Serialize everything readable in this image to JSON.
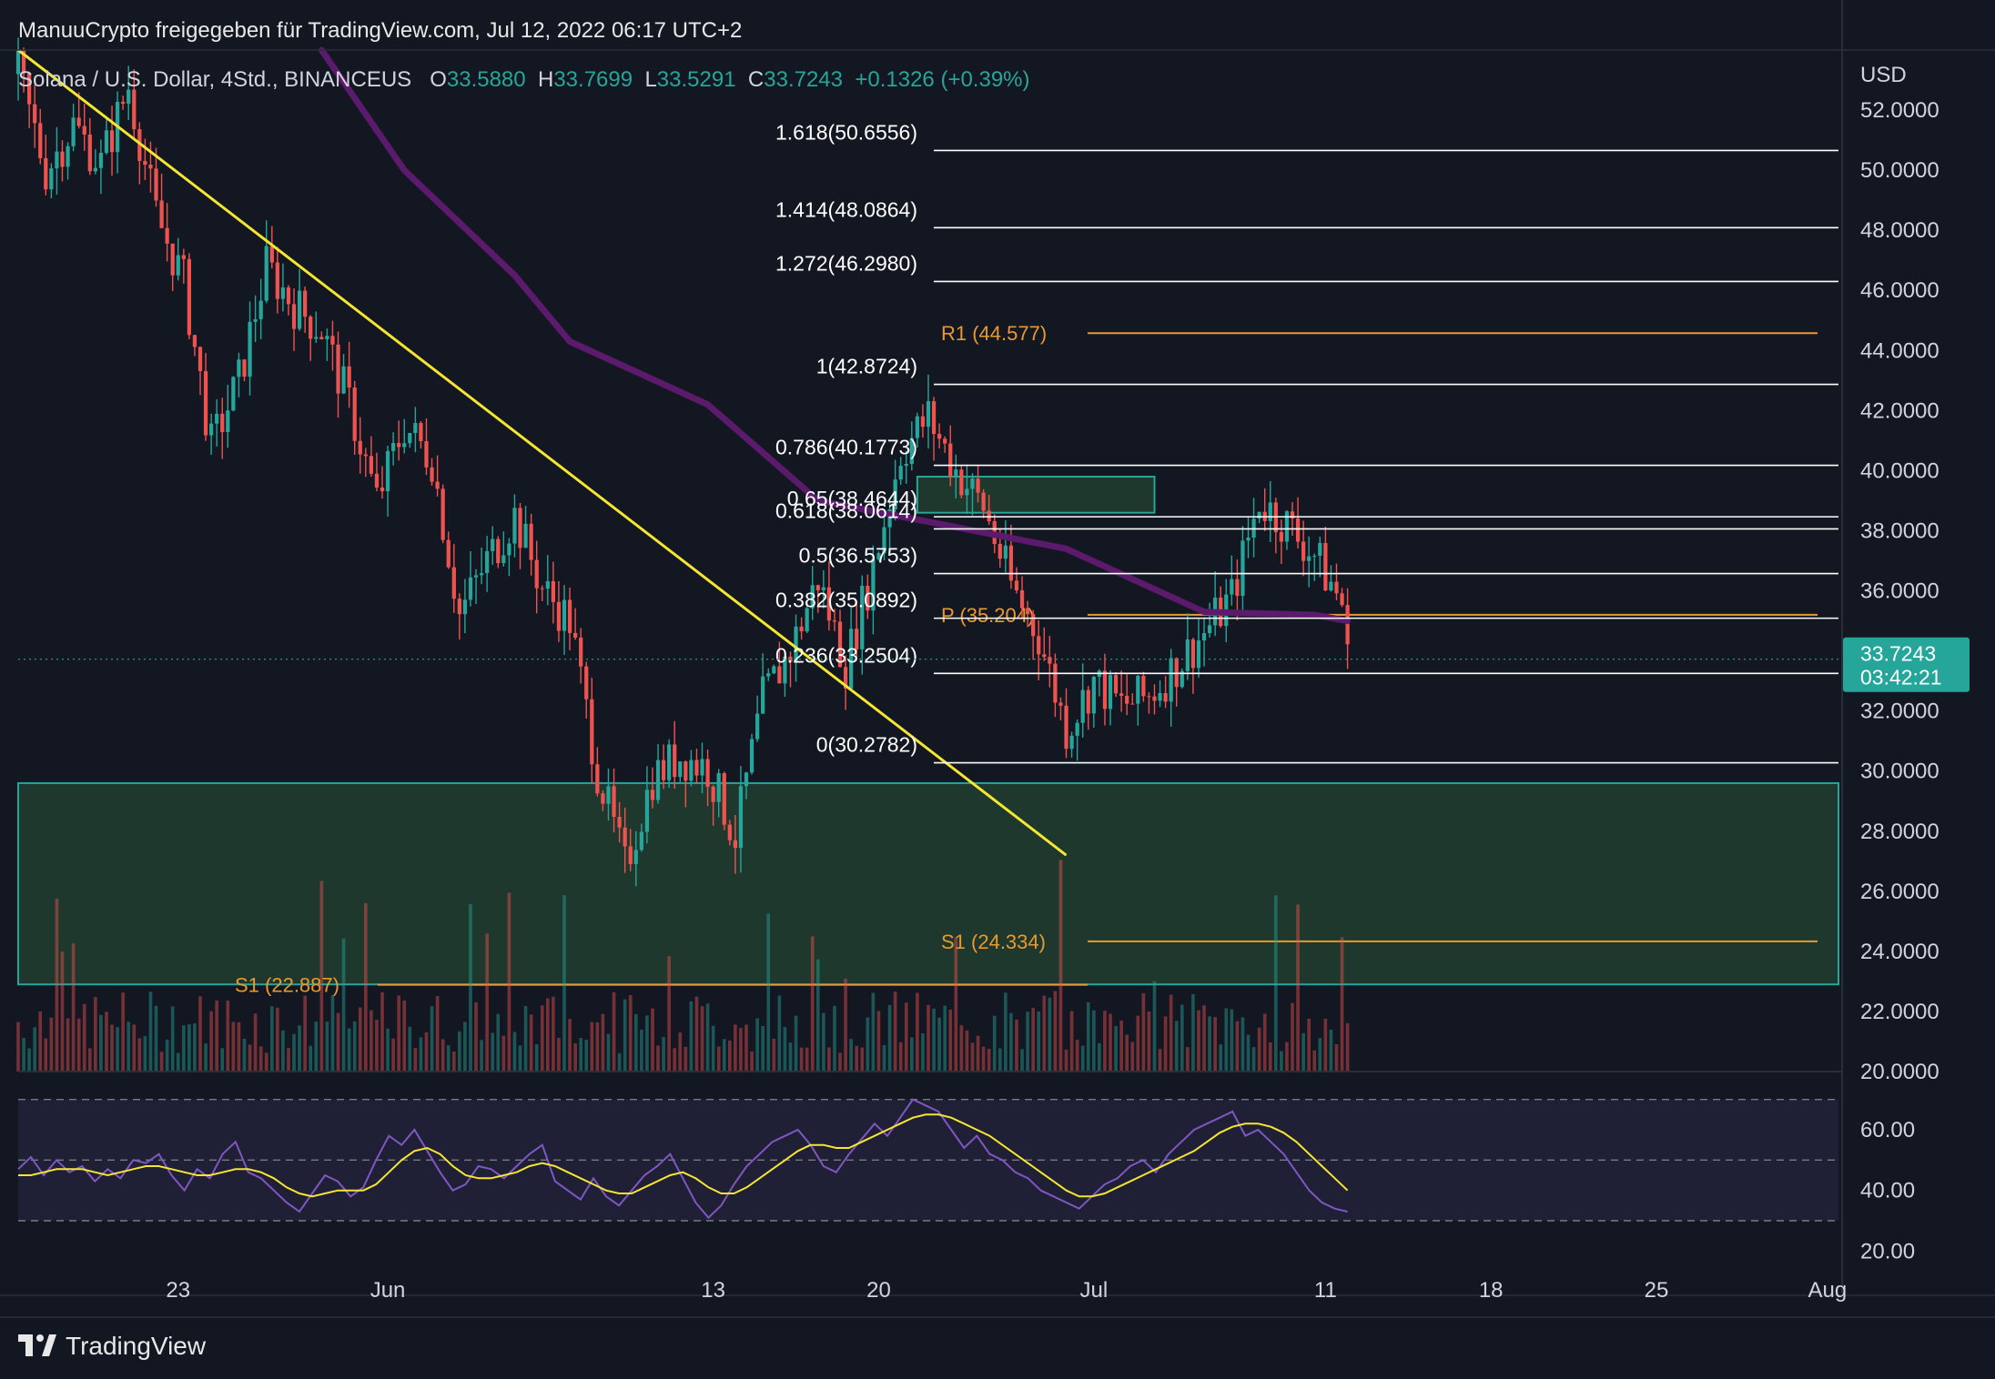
{
  "header": {
    "title": "ManuuCrypto freigegeben für TradingView.com, Jul 12, 2022 06:17 UTC+2"
  },
  "legend": {
    "symbol": "Solana / U.S. Dollar, 4Std., BINANCEUS",
    "open_label": "O",
    "open": "33.5880",
    "high_label": "H",
    "high": "33.7699",
    "low_label": "L",
    "low": "33.5291",
    "close_label": "C",
    "close": "33.7243",
    "change": "+0.1326 (+0.39%)"
  },
  "footer": {
    "brand": "TradingView"
  },
  "colors": {
    "background": "#131722",
    "up": "#26a69a",
    "down": "#ef5350",
    "trendline": "#f5e633",
    "ma": "#5b1a6b",
    "pivot": "#e89a2f",
    "fib": "#ffffff",
    "zone": "#1f3a2e",
    "zone_border": "#26a69a",
    "rsi": "#7e57c2",
    "rsi_ma": "#f5e633",
    "price_tag": "#26a69a"
  },
  "chart_data": {
    "type": "candlestick",
    "symbol": "Solana / U.S. Dollar",
    "timeframe": "4Std.",
    "currency": "USD",
    "price_axis": {
      "label": "USD",
      "range": [
        20,
        54
      ],
      "ticks": [
        "52.0000",
        "50.0000",
        "48.0000",
        "46.0000",
        "44.0000",
        "42.0000",
        "40.0000",
        "38.0000",
        "36.0000",
        "32.0000",
        "30.0000",
        "28.0000",
        "26.0000",
        "24.0000",
        "22.0000",
        "20.0000"
      ]
    },
    "time_axis": {
      "ticks": [
        "23",
        "Jun",
        "13",
        "20",
        "Jul",
        "11",
        "18",
        "25",
        "Aug"
      ]
    },
    "current_price": {
      "value": 33.7243,
      "label": "33.7243",
      "countdown": "03:42:21"
    },
    "price_path": [
      [
        0,
        53.2
      ],
      [
        5,
        50.0
      ],
      [
        10,
        51.5
      ],
      [
        15,
        50.2
      ],
      [
        20,
        52.8
      ],
      [
        25,
        48.5
      ],
      [
        30,
        46.3
      ],
      [
        35,
        40.8
      ],
      [
        40,
        43.0
      ],
      [
        45,
        46.8
      ],
      [
        50,
        45.5
      ],
      [
        55,
        44.7
      ],
      [
        60,
        42.2
      ],
      [
        65,
        39.0
      ],
      [
        70,
        41.5
      ],
      [
        75,
        40.4
      ],
      [
        80,
        35.2
      ],
      [
        85,
        37.0
      ],
      [
        90,
        38.5
      ],
      [
        95,
        36.1
      ],
      [
        100,
        35.0
      ],
      [
        105,
        30.0
      ],
      [
        110,
        26.8
      ],
      [
        115,
        29.8
      ],
      [
        120,
        30.5
      ],
      [
        125,
        30.1
      ],
      [
        130,
        27.8
      ],
      [
        135,
        32.4
      ],
      [
        140,
        34.0
      ],
      [
        145,
        36.4
      ],
      [
        150,
        33.5
      ],
      [
        155,
        36.8
      ],
      [
        160,
        40.6
      ],
      [
        165,
        41.8
      ],
      [
        170,
        40.0
      ],
      [
        175,
        38.8
      ],
      [
        180,
        36.2
      ],
      [
        185,
        34.5
      ],
      [
        190,
        31.4
      ],
      [
        195,
        33.0
      ],
      [
        200,
        32.2
      ],
      [
        205,
        32.5
      ],
      [
        210,
        33.5
      ],
      [
        215,
        34.6
      ],
      [
        220,
        35.8
      ],
      [
        225,
        39.0
      ],
      [
        230,
        38.2
      ],
      [
        235,
        37.2
      ],
      [
        240,
        35.6
      ],
      [
        241,
        33.7
      ]
    ],
    "trendline": {
      "from": [
        0,
        54.0
      ],
      "to": [
        190,
        27.2
      ]
    },
    "moving_average": [
      [
        55,
        54.0
      ],
      [
        70,
        50.0
      ],
      [
        90,
        46.5
      ],
      [
        100,
        44.3
      ],
      [
        125,
        42.2
      ],
      [
        145,
        39.0
      ],
      [
        165,
        38.3
      ],
      [
        190,
        37.4
      ],
      [
        215,
        35.3
      ],
      [
        235,
        35.2
      ],
      [
        241,
        35.0
      ]
    ],
    "fib_retracement": [
      {
        "level": "1.618",
        "value": 50.6556,
        "label": "1.618(50.6556)"
      },
      {
        "level": "1.414",
        "value": 48.0864,
        "label": "1.414(48.0864)"
      },
      {
        "level": "1.272",
        "value": 46.298,
        "label": "1.272(46.2980)"
      },
      {
        "level": "1",
        "value": 42.8724,
        "label": "1(42.8724)"
      },
      {
        "level": "0.786",
        "value": 40.1773,
        "label": "0.786(40.1773)"
      },
      {
        "level": "0.65",
        "value": 38.4644,
        "label": "0.65(38.4644)"
      },
      {
        "level": "0.618",
        "value": 38.0614,
        "label": "0.618(38.0614)"
      },
      {
        "level": "0.5",
        "value": 36.5753,
        "label": "0.5(36.5753)"
      },
      {
        "level": "0.382",
        "value": 35.0892,
        "label": "0.382(35.0892)"
      },
      {
        "level": "0.236",
        "value": 33.2504,
        "label": "0.236(33.2504)"
      },
      {
        "level": "0",
        "value": 30.2782,
        "label": "0(30.2782)"
      }
    ],
    "pivots": [
      {
        "name": "R1",
        "value": 44.577,
        "label": "R1 (44.577)"
      },
      {
        "name": "P",
        "value": 35.204,
        "label": "P (35.204)"
      },
      {
        "name": "S1",
        "value": 24.334,
        "label": "S1 (24.334)"
      },
      {
        "name": "S1",
        "value": 22.887,
        "label": "S1 (22.887)"
      }
    ],
    "zones": [
      {
        "from": 22.9,
        "to": 29.6,
        "t_start": 0,
        "t_end": 330
      },
      {
        "from": 38.6,
        "to": 39.8,
        "t_start": 163,
        "t_end": 206
      }
    ],
    "rsi": {
      "axis_ticks": [
        "60.00",
        "40.00",
        "20.00"
      ],
      "range": [
        15,
        75
      ],
      "bands": [
        30,
        50,
        70
      ],
      "values": [
        47,
        51,
        45,
        50,
        46,
        48,
        43,
        47,
        44,
        50,
        49,
        52,
        45,
        40,
        47,
        44,
        52,
        56,
        46,
        44,
        40,
        36,
        33,
        39,
        45,
        43,
        38,
        41,
        50,
        58,
        55,
        60,
        53,
        46,
        40,
        42,
        48,
        47,
        44,
        48,
        52,
        55,
        43,
        40,
        37,
        44,
        38,
        35,
        40,
        45,
        48,
        52,
        44,
        36,
        31,
        35,
        42,
        48,
        52,
        56,
        58,
        60,
        55,
        48,
        46,
        52,
        57,
        62,
        58,
        64,
        70,
        68,
        66,
        60,
        54,
        58,
        52,
        50,
        46,
        44,
        40,
        38,
        36,
        34,
        38,
        42,
        44,
        48,
        50,
        46,
        52,
        56,
        60,
        62,
        64,
        66,
        58,
        60,
        56,
        52,
        46,
        40,
        36,
        34,
        33
      ],
      "ma": [
        45,
        45,
        46,
        47,
        47,
        47,
        46,
        45,
        46,
        47,
        48,
        48,
        47,
        46,
        45,
        45,
        46,
        47,
        47,
        46,
        44,
        41,
        39,
        38,
        39,
        40,
        40,
        40,
        42,
        46,
        50,
        53,
        54,
        52,
        48,
        45,
        44,
        44,
        45,
        46,
        48,
        49,
        48,
        46,
        44,
        42,
        40,
        39,
        39,
        41,
        43,
        45,
        46,
        44,
        41,
        39,
        39,
        41,
        44,
        47,
        50,
        53,
        55,
        55,
        54,
        54,
        56,
        58,
        60,
        62,
        64,
        65,
        65,
        64,
        62,
        60,
        58,
        55,
        52,
        49,
        46,
        43,
        40,
        38,
        38,
        39,
        41,
        43,
        45,
        47,
        49,
        51,
        53,
        56,
        59,
        61,
        62,
        62,
        61,
        59,
        56,
        52,
        48,
        44,
        40
      ]
    }
  }
}
